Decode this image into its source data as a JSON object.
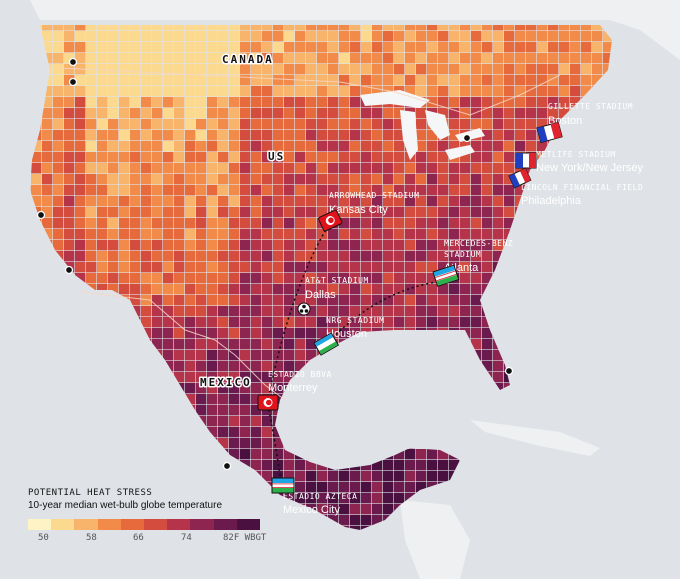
{
  "countries": [
    {
      "label": "CANADA"
    },
    {
      "label": "US"
    },
    {
      "label": "MEXICO"
    }
  ],
  "stadiums": [
    {
      "stadium": "GILLETTE STADIUM",
      "city": "Boston",
      "flag": "france"
    },
    {
      "stadium": "METLIFE STADIUM",
      "city": "New York/New Jersey",
      "flag": "france"
    },
    {
      "stadium": "LINCOLN FINANCIAL FIELD",
      "city": "Philadelphia",
      "flag": "france"
    },
    {
      "stadium": "ARROWHEAD STADIUM",
      "city": "Kansas City",
      "flag": "tunisia"
    },
    {
      "stadium": "MERCEDES-BENZ STADIUM",
      "city": "Atlanta",
      "flag": "uzbekistan"
    },
    {
      "stadium": "AT&T STADIUM",
      "city": "Dallas",
      "flag": "none"
    },
    {
      "stadium": "NRG STADIUM",
      "city": "Houston",
      "flag": "uzbekistan"
    },
    {
      "stadium": "ESTADIO BBVA",
      "city": "Monterrey",
      "flag": "tunisia"
    },
    {
      "stadium": "ESTADIO AZTECA",
      "city": "Mexico City",
      "flag": "uzbekistan"
    }
  ],
  "legend": {
    "title": "POTENTIAL HEAT STRESS",
    "subtitle": "10-year median wet-bulb globe temperature",
    "ticks": [
      "50",
      "58",
      "66",
      "74",
      "82F WBGT"
    ],
    "colors": [
      "#fdf3c4",
      "#fbd98f",
      "#f8b46a",
      "#f28b49",
      "#e66a3c",
      "#d44c3e",
      "#b53449",
      "#8e2450",
      "#6a1a4c",
      "#4a1040"
    ]
  },
  "colors": {
    "ocean": "#dfe3e7",
    "land_other": "#eef0f2",
    "lakes": "#ffffff"
  },
  "icons": [
    "ball-icon",
    "city-dot-icon",
    "route-dotted-line"
  ]
}
